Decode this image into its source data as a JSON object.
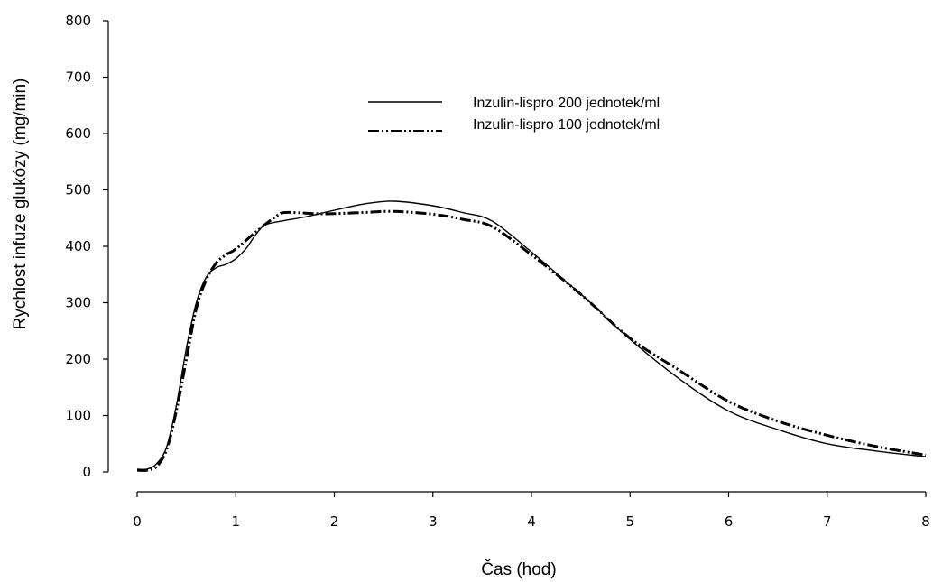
{
  "chart_data": {
    "type": "line",
    "title": "",
    "xlabel": "Čas (hod)",
    "ylabel": "Rychlost infuze glukózy (mg/min)",
    "xlim": [
      0,
      8
    ],
    "ylim": [
      0,
      800
    ],
    "x_ticks": [
      0,
      1,
      2,
      3,
      4,
      5,
      6,
      7,
      8
    ],
    "y_ticks": [
      0,
      100,
      200,
      300,
      400,
      500,
      600,
      700,
      800
    ],
    "grid": false,
    "legend_position": "top-center",
    "series": [
      {
        "name": "Inzulin-lispro 200 jednotek/ml",
        "style": "solid",
        "color": "#000000",
        "points": [
          [
            0,
            5
          ],
          [
            0.1,
            5
          ],
          [
            0.2,
            15
          ],
          [
            0.3,
            45
          ],
          [
            0.4,
            120
          ],
          [
            0.5,
            220
          ],
          [
            0.6,
            300
          ],
          [
            0.7,
            345
          ],
          [
            0.8,
            362
          ],
          [
            0.9,
            368
          ],
          [
            1.0,
            378
          ],
          [
            1.1,
            395
          ],
          [
            1.2,
            420
          ],
          [
            1.3,
            438
          ],
          [
            1.5,
            446
          ],
          [
            1.7,
            452
          ],
          [
            2.0,
            464
          ],
          [
            2.3,
            475
          ],
          [
            2.6,
            480
          ],
          [
            3.0,
            472
          ],
          [
            3.3,
            460
          ],
          [
            3.6,
            445
          ],
          [
            4.0,
            390
          ],
          [
            4.3,
            345
          ],
          [
            4.6,
            300
          ],
          [
            5.0,
            235
          ],
          [
            5.5,
            165
          ],
          [
            6.0,
            108
          ],
          [
            6.5,
            75
          ],
          [
            7.0,
            50
          ],
          [
            7.5,
            37
          ],
          [
            8.0,
            27
          ]
        ]
      },
      {
        "name": "Inzulin-lispro 100 jednotek/ml",
        "style": "dash-dot-dot",
        "color": "#000000",
        "points": [
          [
            0,
            3
          ],
          [
            0.1,
            3
          ],
          [
            0.2,
            10
          ],
          [
            0.3,
            40
          ],
          [
            0.4,
            110
          ],
          [
            0.5,
            200
          ],
          [
            0.6,
            290
          ],
          [
            0.7,
            340
          ],
          [
            0.8,
            370
          ],
          [
            0.9,
            385
          ],
          [
            1.0,
            395
          ],
          [
            1.2,
            425
          ],
          [
            1.4,
            452
          ],
          [
            1.5,
            460
          ],
          [
            1.8,
            458
          ],
          [
            2.0,
            458
          ],
          [
            2.3,
            460
          ],
          [
            2.6,
            462
          ],
          [
            3.0,
            457
          ],
          [
            3.3,
            448
          ],
          [
            3.6,
            435
          ],
          [
            4.0,
            385
          ],
          [
            4.5,
            315
          ],
          [
            5.0,
            237
          ],
          [
            5.5,
            180
          ],
          [
            6.0,
            125
          ],
          [
            6.5,
            90
          ],
          [
            7.0,
            65
          ],
          [
            7.5,
            45
          ],
          [
            8.0,
            30
          ]
        ]
      }
    ]
  }
}
